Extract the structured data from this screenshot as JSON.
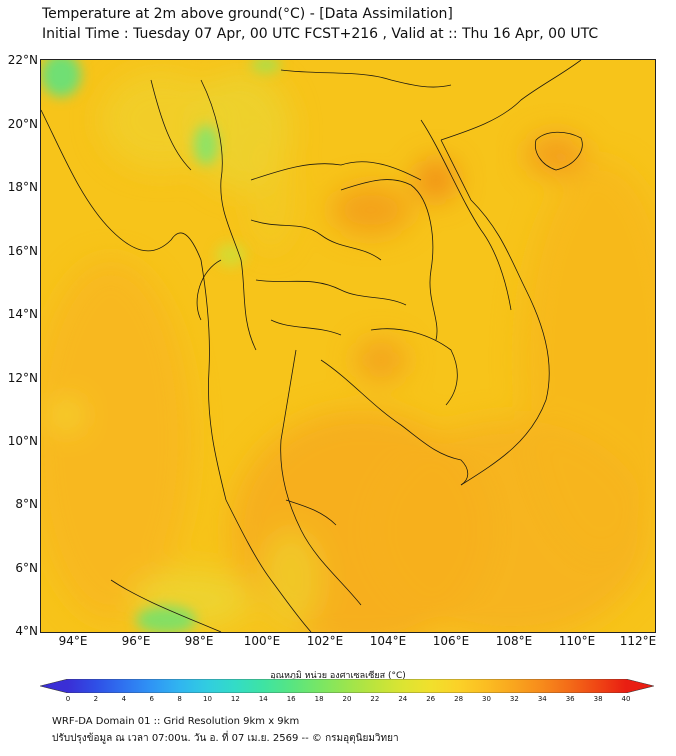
{
  "title_line1": "Temperature at 2m above ground(°C) - [Data Assimilation]",
  "title_line2": "Initial Time : Tuesday 07 Apr, 00 UTC FCST+216 , Valid at :: Thu 16 Apr, 00 UTC",
  "lat_labels": [
    "22°N",
    "20°N",
    "18°N",
    "16°N",
    "14°N",
    "12°N",
    "10°N",
    "8°N",
    "6°N",
    "4°N"
  ],
  "lon_labels": [
    "94°E",
    "96°E",
    "98°E",
    "100°E",
    "102°E",
    "104°E",
    "106°E",
    "108°E",
    "110°E",
    "112°E"
  ],
  "colorbar": {
    "title": "อุณหภูมิ หน่วย องศาเซลเซียส (°C)",
    "ticks": [
      "0",
      "2",
      "4",
      "6",
      "8",
      "10",
      "12",
      "14",
      "16",
      "18",
      "20",
      "22",
      "24",
      "26",
      "28",
      "30",
      "32",
      "34",
      "36",
      "38",
      "40"
    ],
    "colors": [
      "#3a2fd6",
      "#2f4fe6",
      "#2f72f0",
      "#2f95f5",
      "#30b5f0",
      "#31cde0",
      "#33dcc6",
      "#3ee3a3",
      "#57e582",
      "#78e665",
      "#9be54e",
      "#bde43c",
      "#dce432",
      "#f1e02c",
      "#fbd128",
      "#fbbd22",
      "#f9a51e",
      "#f78a1b",
      "#f36a18",
      "#ef4514",
      "#e91e12"
    ]
  },
  "footer_line1": "WRF-DA Domain 01 :: Grid Resolution 9km x 9km",
  "footer_line2": "ปรับปรุงข้อมูล ณ เวลา 07:00น. วัน อ. ที่ 07 เม.ย. 2569 -- © กรมอุตุนิยมวิทยา"
}
